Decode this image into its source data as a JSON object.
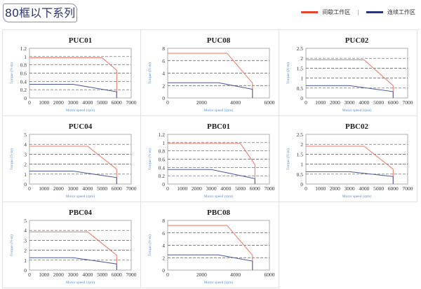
{
  "header": {
    "title": "80框以下系列"
  },
  "legend": {
    "items": [
      {
        "label": "间歇工作区",
        "color": "#e8452f"
      },
      {
        "label": "连续工作区",
        "color": "#2a3576"
      }
    ],
    "separator": "|"
  },
  "chart_data": [
    {
      "type": "line",
      "title": "PUC01",
      "xlabel": "Motor speed (rpm)",
      "ylabel": "Torque (N-m)",
      "xlim": [
        0,
        7000
      ],
      "xstep": 1000,
      "ylim": [
        0,
        1.2
      ],
      "ystep": 0.2,
      "ylabels": [
        "0",
        "0.2",
        "0.4",
        "0.6",
        "0.8",
        "1",
        "1.2"
      ],
      "grid": true,
      "series": [
        {
          "x": [
            0,
            5000,
            6000,
            6000
          ],
          "y": [
            0.97,
            0.97,
            0.67,
            0
          ],
          "color": "#f07565"
        },
        {
          "x": [
            0,
            3000,
            6000,
            6000
          ],
          "y": [
            0.33,
            0.33,
            0.15,
            0
          ],
          "color": "#4a5898"
        }
      ]
    },
    {
      "type": "line",
      "title": "PUC08",
      "xlabel": "Motor speed (rpm)",
      "ylabel": "Torque (N-m)",
      "xlim": [
        0,
        6000
      ],
      "xstep": 2000,
      "ylim": [
        0,
        8
      ],
      "ystep": 2,
      "ylabels": [
        "0",
        "2",
        "4",
        "6",
        "8"
      ],
      "grid": true,
      "series": [
        {
          "x": [
            0,
            3500,
            5000,
            5000
          ],
          "y": [
            7.2,
            7.2,
            2.4,
            0
          ],
          "color": "#f07565"
        },
        {
          "x": [
            0,
            3000,
            5000,
            5000
          ],
          "y": [
            2.45,
            2.45,
            1.4,
            0
          ],
          "color": "#4a5898"
        }
      ]
    },
    {
      "type": "line",
      "title": "PUC02",
      "xlabel": "Motor speed (rpm)",
      "ylabel": "Torque (N-m)",
      "xlim": [
        0,
        7000
      ],
      "xstep": 1000,
      "ylim": [
        0,
        2.5
      ],
      "ystep": 0.5,
      "ylabels": [
        "0",
        "0.5",
        "1",
        "1.5",
        "2",
        "2.5"
      ],
      "grid": true,
      "series": [
        {
          "x": [
            0,
            4000,
            6000,
            6000
          ],
          "y": [
            1.92,
            1.92,
            0.62,
            0
          ],
          "color": "#f07565"
        },
        {
          "x": [
            0,
            3000,
            6000,
            6000
          ],
          "y": [
            0.62,
            0.62,
            0.32,
            0
          ],
          "color": "#4a5898"
        }
      ]
    },
    {
      "type": "line",
      "title": "PUC04",
      "xlabel": "Motor speed (rpm)",
      "ylabel": "Torque (N-m)",
      "xlim": [
        0,
        7000
      ],
      "xstep": 1000,
      "ylim": [
        0,
        5
      ],
      "ystep": 1,
      "ylabels": [
        "0",
        "1",
        "2",
        "3",
        "4",
        "5"
      ],
      "grid": true,
      "series": [
        {
          "x": [
            0,
            4000,
            6000,
            6000
          ],
          "y": [
            3.8,
            3.8,
            1.5,
            0
          ],
          "color": "#f07565"
        },
        {
          "x": [
            0,
            3000,
            6000,
            6000
          ],
          "y": [
            1.3,
            1.3,
            0.65,
            0
          ],
          "color": "#4a5898"
        }
      ]
    },
    {
      "type": "line",
      "title": "PBC01",
      "xlabel": "Motor speed (rpm)",
      "ylabel": "Torque (N-m)",
      "xlim": [
        0,
        7000
      ],
      "xstep": 1000,
      "ylim": [
        0,
        1.2
      ],
      "ystep": 0.2,
      "ylabels": [
        "0",
        "0.2",
        "0.4",
        "0.6",
        "0.8",
        "1",
        "1.2"
      ],
      "grid": true,
      "series": [
        {
          "x": [
            0,
            5000,
            6000,
            6000
          ],
          "y": [
            0.98,
            0.98,
            0.47,
            0
          ],
          "color": "#f07565"
        },
        {
          "x": [
            0,
            3000,
            6000,
            6000
          ],
          "y": [
            0.35,
            0.35,
            0.13,
            0
          ],
          "color": "#4a5898"
        }
      ]
    },
    {
      "type": "line",
      "title": "PBC02",
      "xlabel": "Motor speed (rpm)",
      "ylabel": "Torque (N-m)",
      "xlim": [
        0,
        7000
      ],
      "xstep": 1000,
      "ylim": [
        0,
        2.5
      ],
      "ystep": 0.5,
      "ylabels": [
        "0",
        "0.5",
        "1",
        "1.5",
        "2",
        "2.5"
      ],
      "grid": true,
      "series": [
        {
          "x": [
            0,
            4000,
            6000,
            6000
          ],
          "y": [
            1.9,
            1.9,
            0.75,
            0
          ],
          "color": "#f07565"
        },
        {
          "x": [
            0,
            3000,
            6000,
            6000
          ],
          "y": [
            0.62,
            0.62,
            0.38,
            0
          ],
          "color": "#4a5898"
        }
      ]
    },
    {
      "type": "line",
      "title": "PBC04",
      "xlabel": "Motor speed (rpm)",
      "ylabel": "Torque (N-m)",
      "xlim": [
        0,
        7000
      ],
      "xstep": 1000,
      "ylim": [
        0,
        5
      ],
      "ystep": 1,
      "ylabels": [
        "0",
        "1",
        "2",
        "3",
        "4",
        "5"
      ],
      "grid": true,
      "series": [
        {
          "x": [
            0,
            4000,
            6000,
            6000
          ],
          "y": [
            3.85,
            3.85,
            1.5,
            0
          ],
          "color": "#f07565"
        },
        {
          "x": [
            0,
            3000,
            6000,
            6000
          ],
          "y": [
            1.25,
            1.25,
            0.62,
            0
          ],
          "color": "#4a5898"
        }
      ]
    },
    {
      "type": "line",
      "title": "PBC08",
      "xlabel": "Motor speed (rpm)",
      "ylabel": "Torque (N-m)",
      "xlim": [
        0,
        6000
      ],
      "xstep": 2000,
      "ylim": [
        0,
        8
      ],
      "ystep": 2,
      "ylabels": [
        "0",
        "2",
        "4",
        "6",
        "8"
      ],
      "grid": true,
      "series": [
        {
          "x": [
            0,
            3500,
            5000,
            5000
          ],
          "y": [
            7.2,
            7.2,
            2.4,
            0
          ],
          "color": "#f07565"
        },
        {
          "x": [
            0,
            3000,
            5000,
            5000
          ],
          "y": [
            2.45,
            2.45,
            1.45,
            0
          ],
          "color": "#4a5898"
        }
      ]
    }
  ]
}
